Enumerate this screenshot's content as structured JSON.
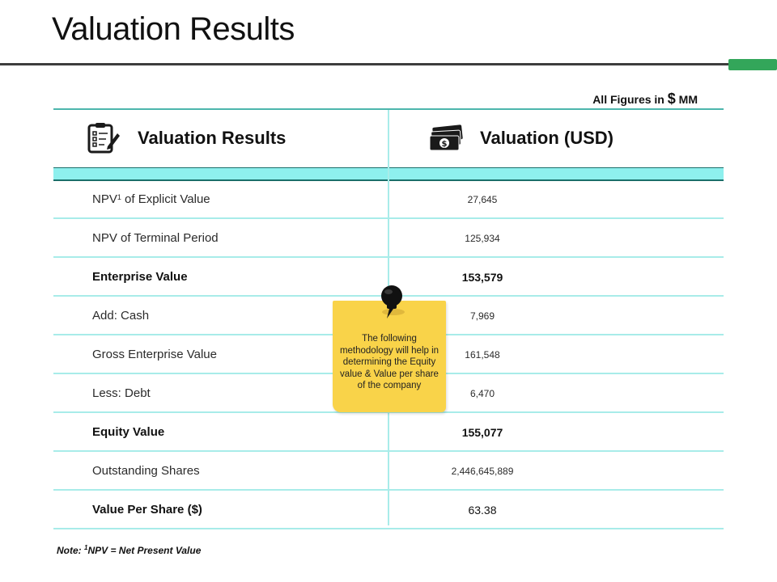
{
  "page": {
    "title": "Valuation Results"
  },
  "figures_note": {
    "prefix": "All Figures in",
    "currency": "$",
    "unit": "MM"
  },
  "table": {
    "headers": [
      {
        "label": "Valuation Results",
        "icon": "clipboard-checklist-icon"
      },
      {
        "label": "Valuation (USD)",
        "icon": "money-stack-icon"
      }
    ],
    "rows": [
      {
        "label": "NPV",
        "label_sup": "1",
        "label_suffix": " of Explicit Value",
        "value": "27,645",
        "bold": false
      },
      {
        "label": "NPV of Terminal Period",
        "value": "125,934",
        "bold": false
      },
      {
        "label": "Enterprise Value",
        "value": "153,579",
        "bold": true
      },
      {
        "label": "Add: Cash",
        "value": "7,969",
        "bold": false
      },
      {
        "label": "Gross Enterprise Value",
        "value": "161,548",
        "bold": false
      },
      {
        "label": "Less: Debt",
        "value": "6,470",
        "bold": false
      },
      {
        "label": "Equity Value",
        "value": "155,077",
        "bold": true
      },
      {
        "label": "Outstanding Shares",
        "value": "2,446,645,889",
        "bold": false
      },
      {
        "label": "Value Per Share ($)",
        "value": "63.38",
        "bold": true,
        "value_bold": false
      }
    ]
  },
  "sticky_note": {
    "text": "The following methodology will help in determining the Equity value & Value per share of the company",
    "icon": "pushpin-icon"
  },
  "footnote": {
    "prefix": "Note: ",
    "sup": "1",
    "text": "NPV = Net Present Value"
  },
  "colors": {
    "accent_green": "#33a65a",
    "band_cyan": "#8ef0ee",
    "grid_line": "#a8ece9",
    "sticky_yellow": "#f9d349"
  }
}
